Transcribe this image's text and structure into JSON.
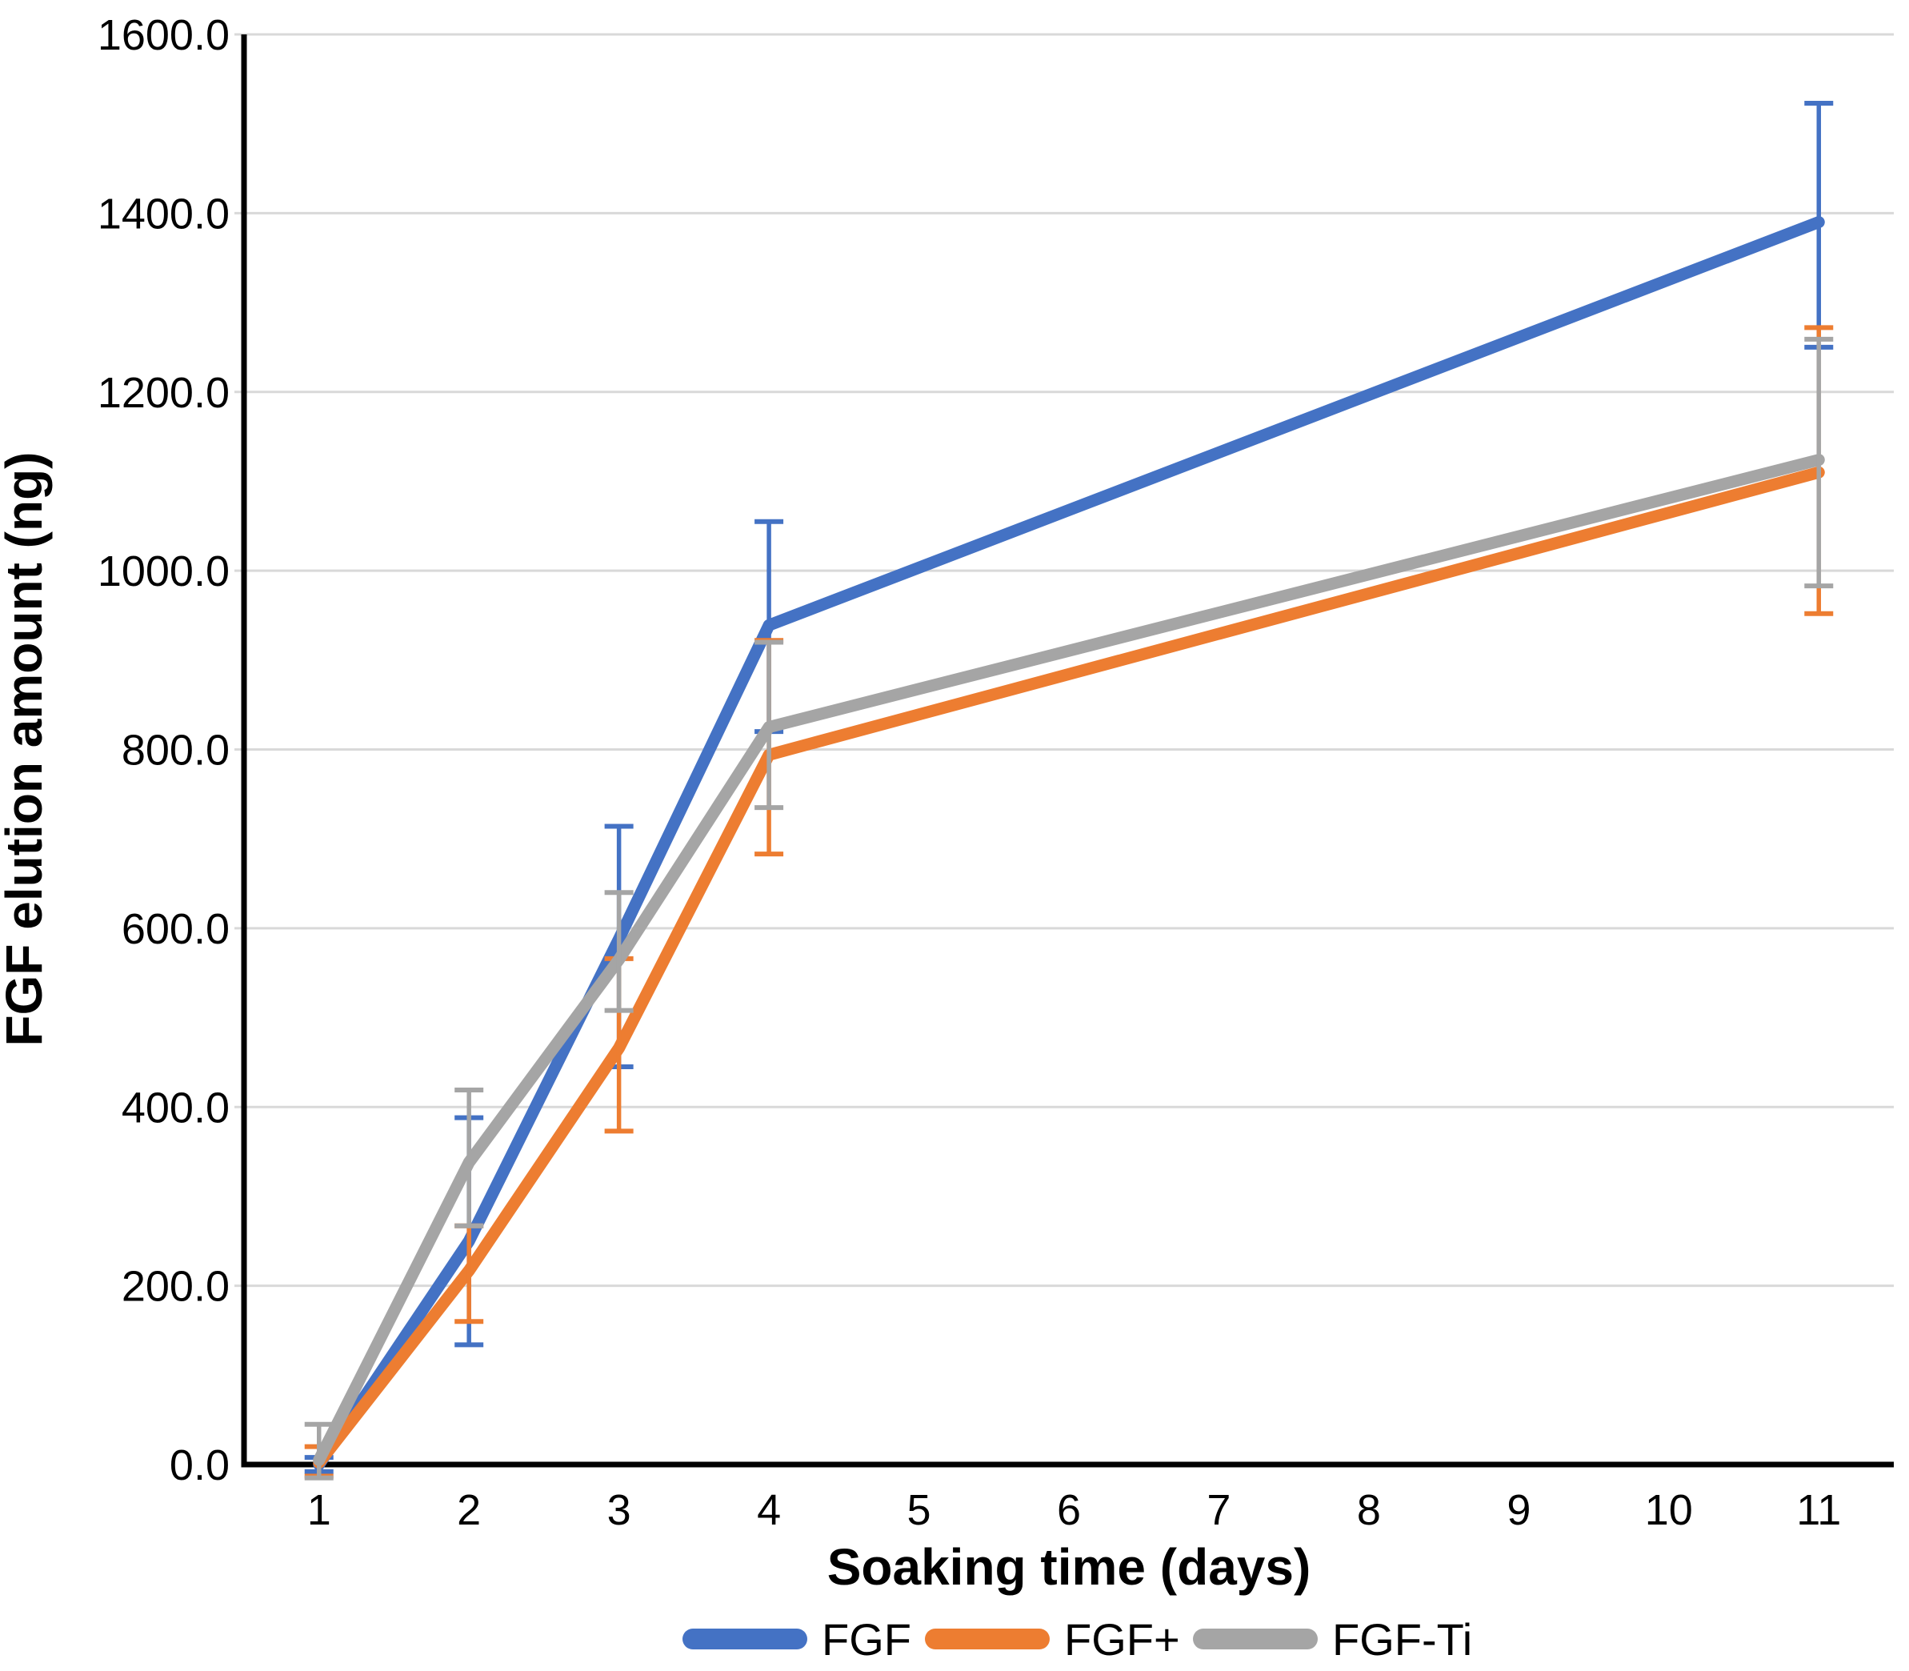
{
  "chart_data": {
    "type": "line",
    "title": "",
    "xlabel": "Soaking time (days)",
    "ylabel": "FGF elution amount (ng)",
    "x": [
      1,
      2,
      3,
      4,
      11
    ],
    "x_axis_ticks": [
      "1",
      "2",
      "3",
      "4",
      "5",
      "6",
      "7",
      "8",
      "9",
      "10",
      "11"
    ],
    "y_ticks": [
      {
        "v": 0,
        "label": "0.0"
      },
      {
        "v": 200,
        "label": "200.0"
      },
      {
        "v": 400,
        "label": "400.0"
      },
      {
        "v": 600,
        "label": "600.0"
      },
      {
        "v": 800,
        "label": "800.0"
      },
      {
        "v": 1000,
        "label": "1000.0"
      },
      {
        "v": 1200,
        "label": "1200.0"
      },
      {
        "v": 1400,
        "label": "1400.0"
      },
      {
        "v": 1600,
        "label": "1600.0"
      }
    ],
    "ylim": [
      0,
      1600
    ],
    "grid": "horizontal",
    "legend_position": "bottom",
    "error_bars": true,
    "series": [
      {
        "name": "FGF",
        "color": "#4472C4",
        "values": [
          0,
          250,
          588,
          939,
          1390
        ],
        "error_low": [
          -8,
          134,
          445,
          820,
          1250
        ],
        "error_high": [
          8,
          388,
          714,
          1055,
          1523
        ]
      },
      {
        "name": "FGF+",
        "color": "#ED7D31",
        "values": [
          2,
          217,
          466,
          794,
          1110
        ],
        "error_low": [
          -13,
          160,
          373,
          683,
          952
        ],
        "error_high": [
          20,
          267,
          566,
          922,
          1272
        ]
      },
      {
        "name": "FGF-Ti",
        "color": "#A5A5A5",
        "values": [
          5,
          338,
          565,
          825,
          1124
        ],
        "error_low": [
          -15,
          267,
          508,
          735,
          983
        ],
        "error_high": [
          45,
          419,
          640,
          920,
          1259
        ]
      }
    ]
  },
  "colors": {
    "background": "#FFFFFF",
    "gridline": "#D9D9D9",
    "axis": "#000000",
    "text": "#000000"
  }
}
